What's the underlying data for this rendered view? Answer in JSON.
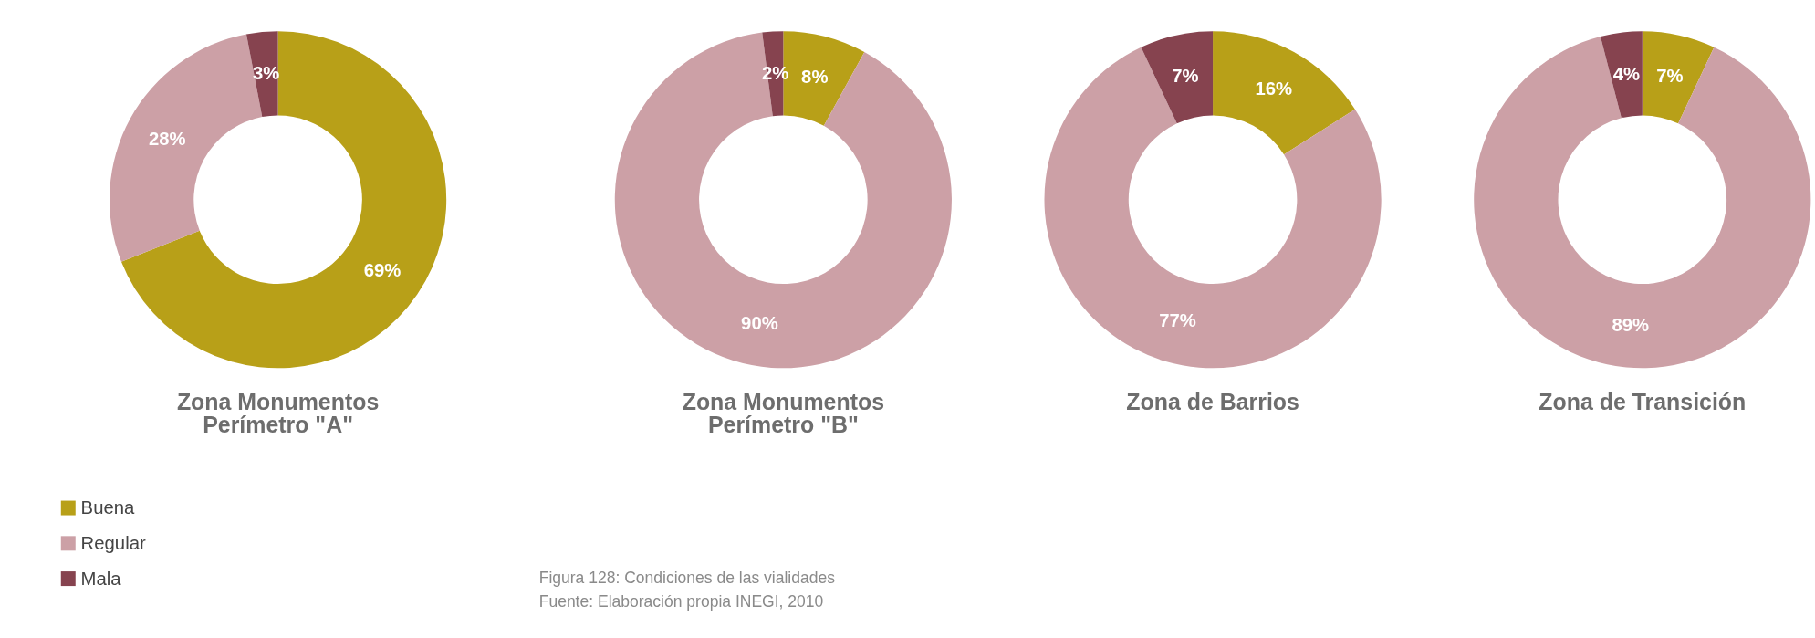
{
  "chart_data": [
    {
      "type": "donut",
      "title": "Zona Monumentos\nPerímetro \"A\"",
      "categories": [
        "Buena",
        "Regular",
        "Mala"
      ],
      "values": [
        69,
        28,
        3
      ],
      "value_labels": [
        "69%",
        "28%",
        "3%"
      ],
      "colors": [
        "#b8a018",
        "#cca0a6",
        "#86434f"
      ],
      "legend": "bottom left"
    },
    {
      "type": "donut",
      "title": "Zona Monumentos\nPerímetro \"B\"",
      "categories": [
        null,
        null,
        null
      ],
      "values": [
        8,
        90,
        2
      ],
      "value_labels": [
        "8%",
        "90%",
        "2%"
      ],
      "colors": [
        "#b8a018",
        "#cca0a6",
        "#86434f"
      ],
      "annotations": [
        "Figura 128:  Condiciones de las vialidades",
        "Fuente: Elaboración propia INEGI, 2010"
      ]
    },
    {
      "type": "donut",
      "title": "Zona de Barrios",
      "categories": [
        null,
        null,
        null
      ],
      "values": [
        16,
        77,
        7
      ],
      "value_labels": [
        "16%",
        "77%",
        "7%"
      ],
      "colors": [
        "#b8a018",
        "#cca0a6",
        "#86434f"
      ]
    },
    {
      "type": "donut",
      "title": "Zona de Transición",
      "categories": [
        null,
        null,
        null
      ],
      "values": [
        7,
        89,
        4
      ],
      "value_labels": [
        "7%",
        "89%",
        "4%"
      ],
      "colors": [
        "#b8a018",
        "#cca0a6",
        "#86434f"
      ]
    }
  ]
}
